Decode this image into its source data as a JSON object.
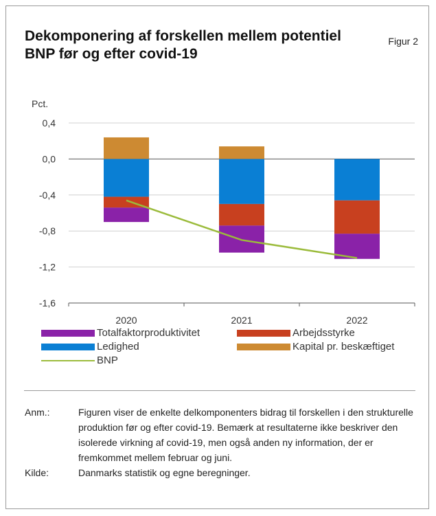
{
  "figure": {
    "title": "Dekomponering af forskellen mellem potentiel BNP før og efter covid-19",
    "label": "Figur 2"
  },
  "chart_data": {
    "type": "bar",
    "stacked": true,
    "ylabel": "Pct.",
    "ylim": [
      -1.6,
      0.4
    ],
    "yticks": [
      "0,4",
      "0,0",
      "-0,4",
      "-0,8",
      "-1,2",
      "-1,6"
    ],
    "ytick_values": [
      0.4,
      0.0,
      -0.4,
      -0.8,
      -1.2,
      -1.6
    ],
    "categories": [
      "2020",
      "2021",
      "2022"
    ],
    "grid": true,
    "legend_position": "bottom",
    "series": [
      {
        "name": "Ledighed",
        "type": "bar",
        "color": "#0a7fd4",
        "values": [
          -0.42,
          -0.5,
          -0.46
        ]
      },
      {
        "name": "Arbejdsstyrke",
        "type": "bar",
        "color": "#c8401f",
        "values": [
          -0.12,
          -0.24,
          -0.37
        ]
      },
      {
        "name": "Totalfaktorproduktivitet",
        "type": "bar",
        "color": "#8a22a8",
        "values": [
          -0.16,
          -0.3,
          -0.28
        ]
      },
      {
        "name": "Kapital pr. beskæftiget",
        "type": "bar",
        "color": "#cd8a32",
        "values": [
          0.24,
          0.14,
          0.0
        ]
      },
      {
        "name": "BNP",
        "type": "line",
        "color": "#9bbb3b",
        "values": [
          -0.46,
          -0.9,
          -1.1
        ]
      }
    ]
  },
  "notes": {
    "anm_label": "Anm.:",
    "anm_text": "Figuren viser de enkelte delkomponenters bidrag til forskellen i den strukturelle produktion før og efter covid-19. Bemærk at resultaterne ikke beskriver den isolerede virkning af covid-19, men også anden ny information, der er fremkommet mellem februar og juni.",
    "source_label": "Kilde:",
    "source_text": "Danmarks statistik og egne beregninger."
  }
}
